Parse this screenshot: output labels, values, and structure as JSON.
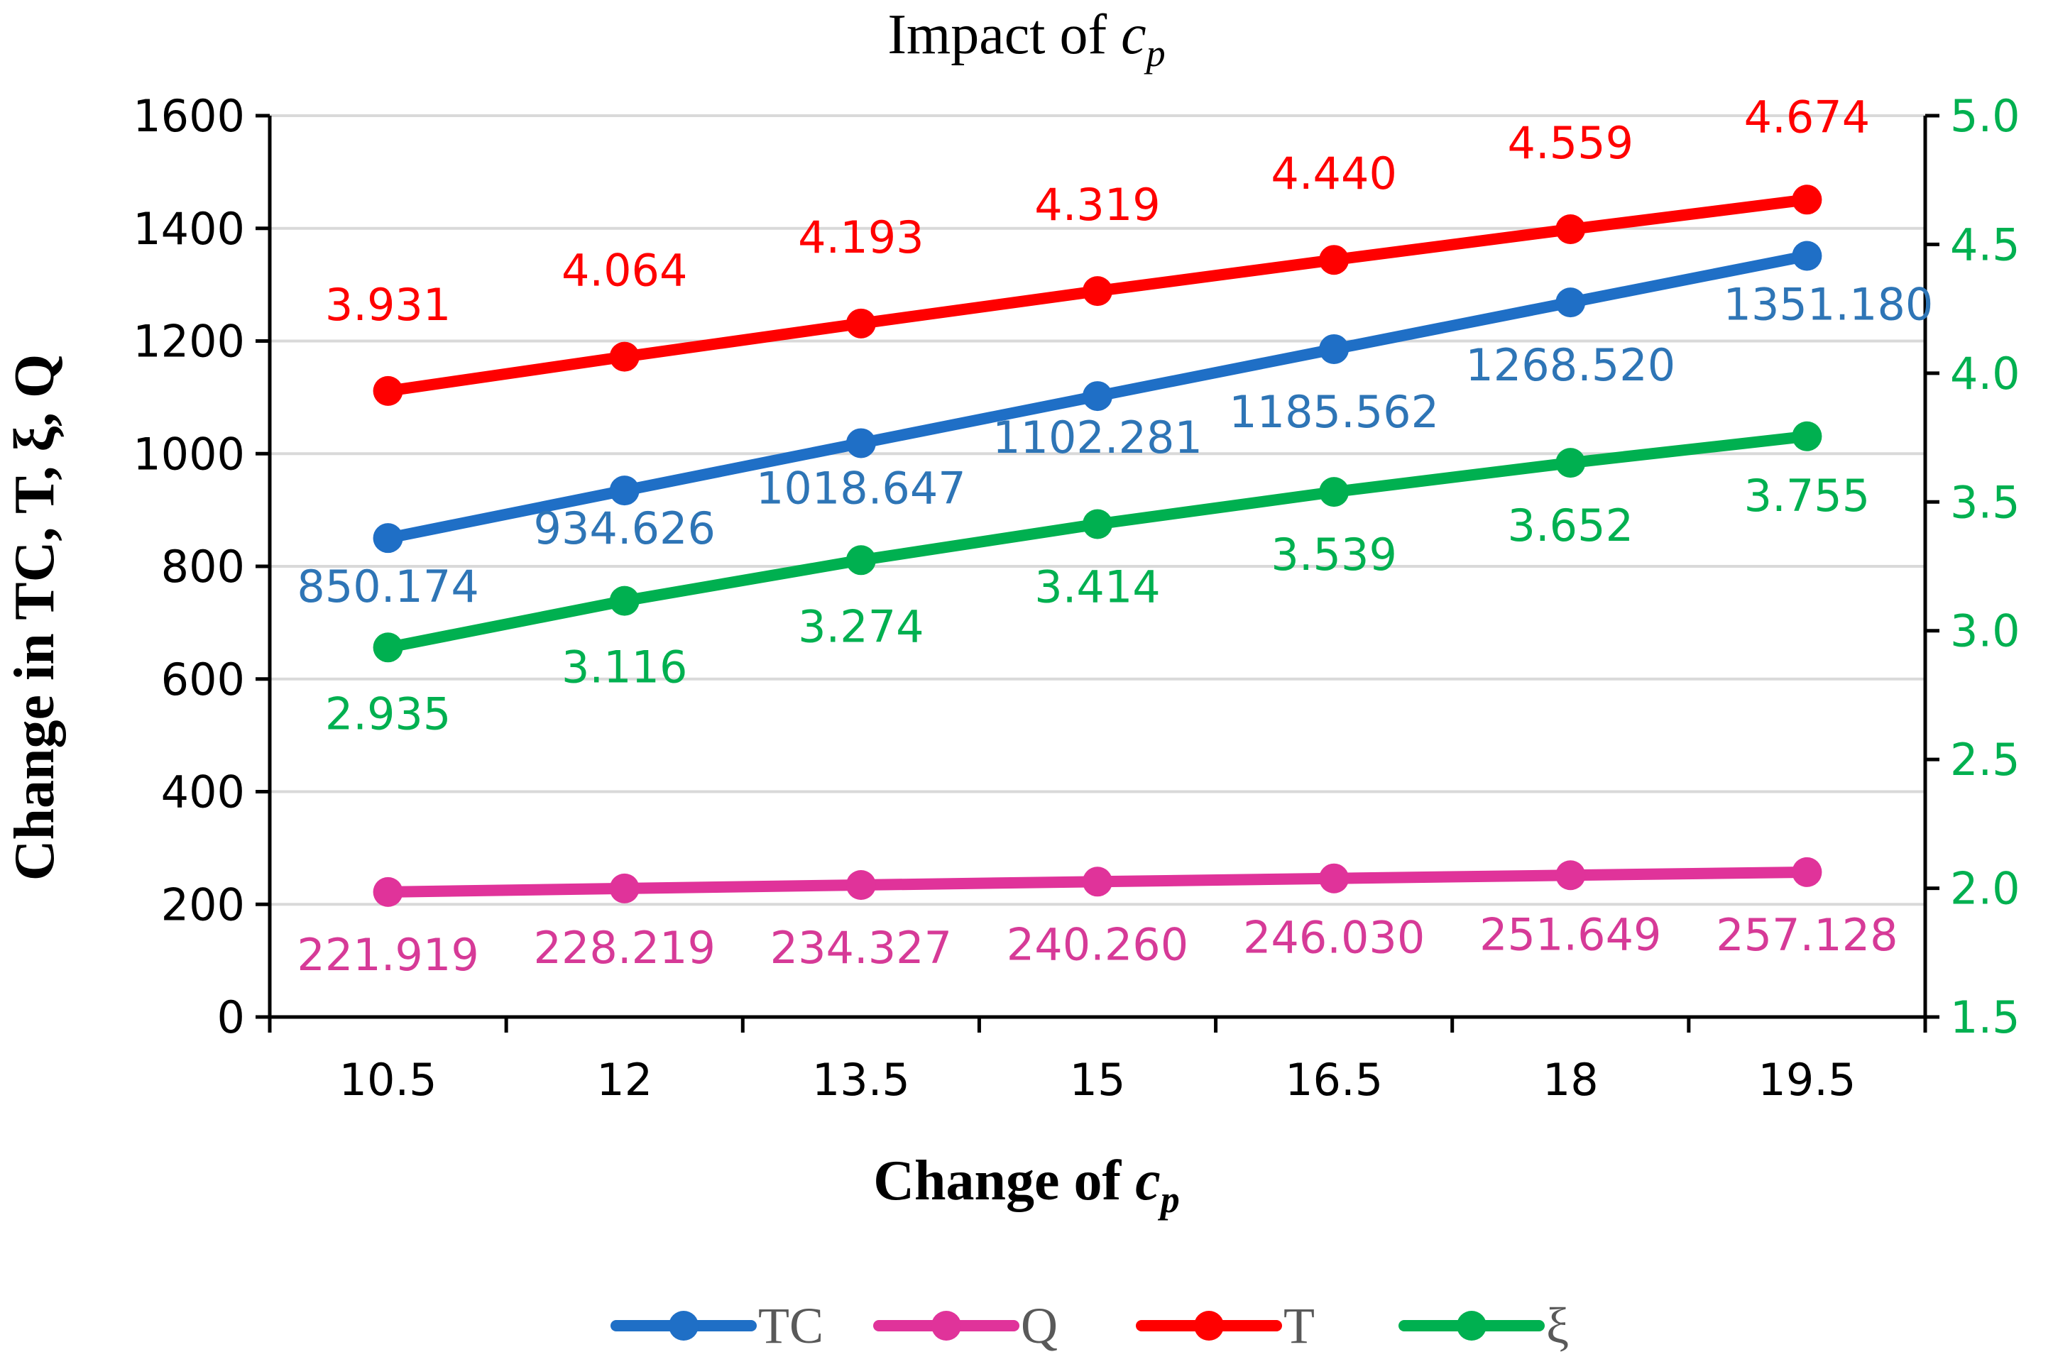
{
  "chart_data": {
    "type": "line",
    "title_main": "Impact of ",
    "title_var": "c",
    "title_sub": "p",
    "xlabel_main": "Change of ",
    "xlabel_var": "c",
    "xlabel_sub": "p",
    "ylabel": "Change in TC, T, ξ, Q",
    "categories": [
      "10.5",
      "12",
      "13.5",
      "15",
      "16.5",
      "18",
      "19.5"
    ],
    "y_left": {
      "min": 0,
      "max": 1600,
      "ticks": [
        "0",
        "200",
        "400",
        "600",
        "800",
        "1000",
        "1200",
        "1400",
        "1600"
      ]
    },
    "y_right": {
      "min": 1.5,
      "max": 5.0,
      "ticks": [
        "1.5",
        "2.0",
        "2.5",
        "3.0",
        "3.5",
        "4.0",
        "4.5",
        "5.0"
      ],
      "color": "#00b050"
    },
    "grid": true,
    "legend_position": "bottom",
    "series": [
      {
        "name": "TC",
        "axis": "left",
        "color": "#1f6fc6",
        "label_color": "#2e75b6",
        "values": [
          850.174,
          934.626,
          1018.647,
          1102.281,
          1185.562,
          1268.52,
          1351.18
        ],
        "labels": [
          "850.174",
          "934.626",
          "1018.647",
          "1102.281",
          "1185.562",
          "1268.520",
          "1351.180"
        ]
      },
      {
        "name": "Q",
        "axis": "left",
        "color": "#e0339a",
        "label_color": "#d63a97",
        "values": [
          221.919,
          228.219,
          234.327,
          240.26,
          246.03,
          251.649,
          257.128
        ],
        "labels": [
          "221.919",
          "228.219",
          "234.327",
          "240.260",
          "246.030",
          "251.649",
          "257.128"
        ]
      },
      {
        "name": "T",
        "axis": "right",
        "color": "#ff0000",
        "label_color": "#ff0000",
        "values": [
          3.931,
          4.064,
          4.193,
          4.319,
          4.44,
          4.559,
          4.674
        ],
        "labels": [
          "3.931",
          "4.064",
          "4.193",
          "4.319",
          "4.440",
          "4.559",
          "4.674"
        ]
      },
      {
        "name": "ξ",
        "axis": "right",
        "color": "#00b050",
        "label_color": "#00b050",
        "values": [
          2.935,
          3.116,
          3.274,
          3.414,
          3.539,
          3.652,
          3.755
        ],
        "labels": [
          "2.935",
          "3.116",
          "3.274",
          "3.414",
          "3.539",
          "3.652",
          "3.755"
        ]
      }
    ]
  }
}
